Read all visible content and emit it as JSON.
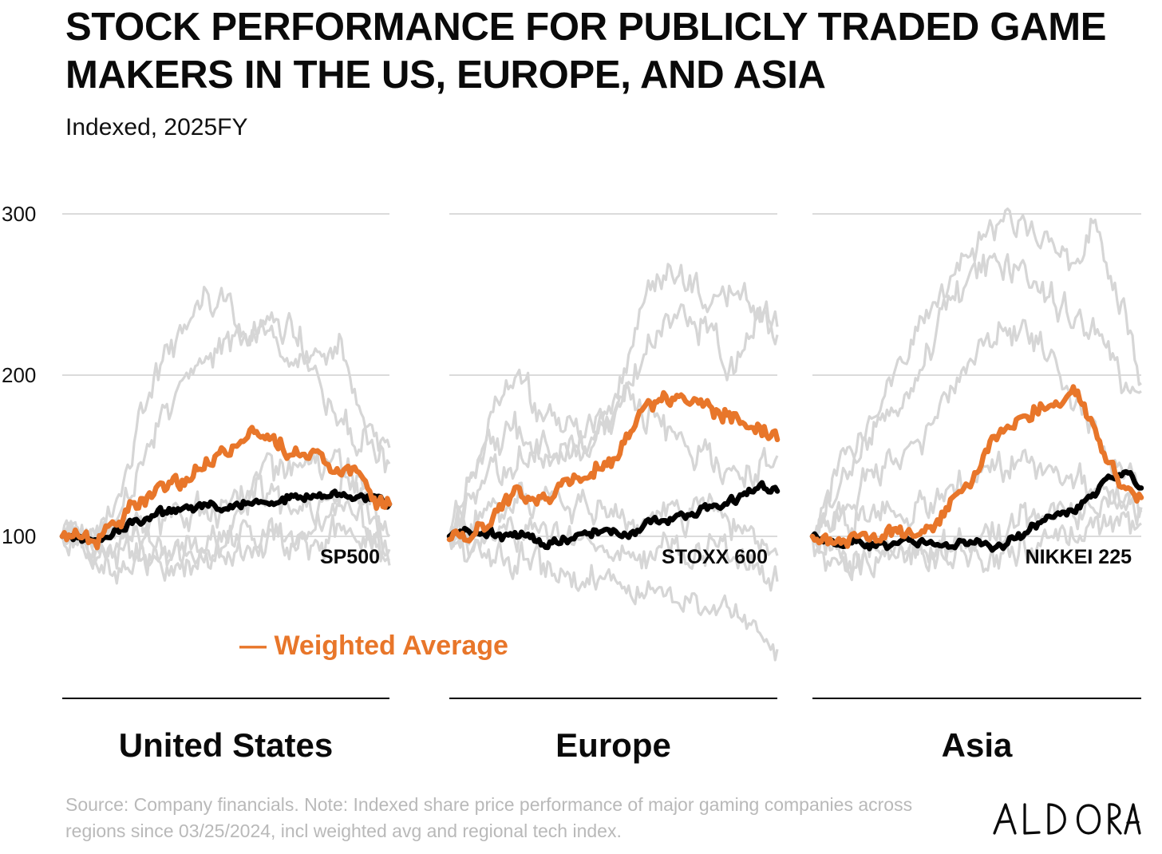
{
  "title": "STOCK PERFORMANCE FOR PUBLICLY TRADED GAME MAKERS IN THE US, EUROPE, AND ASIA",
  "subtitle": "Indexed, 2025FY",
  "source_note": "Source: Company financials. Note: Indexed share price performance of major gaming companies across regions since 03/25/2024, incl weighted avg and regional tech index.",
  "brand": "ALDORA",
  "colors": {
    "weighted_average": "#e8762a",
    "index": "#000000",
    "companies": "#d6d6d6",
    "grid": "#cfcfcf",
    "baseline": "#000000"
  },
  "chart_data": {
    "type": "line",
    "y_ticks": [
      "300",
      "200",
      "100"
    ],
    "ylim": [
      100,
      300
    ],
    "legend": {
      "label": "— Weighted  Average",
      "placement": "bottom-center"
    },
    "panels": [
      {
        "region": "United States",
        "index_name": "SP500",
        "x": [
          0,
          0.05,
          0.1,
          0.2,
          0.3,
          0.4,
          0.5,
          0.55,
          0.6,
          0.7,
          0.8,
          0.85,
          0.9,
          0.95,
          1.0
        ],
        "weighted_average": [
          100,
          102,
          96,
          115,
          130,
          140,
          152,
          161,
          165,
          153,
          148,
          144,
          141,
          122,
          120
        ],
        "index": [
          100,
          99,
          95,
          107,
          114,
          117,
          119,
          121,
          122,
          124,
          125,
          126,
          126,
          123,
          120
        ],
        "companies": [
          [
            100,
            104,
            98,
            145,
            205,
            240,
            250,
            220,
            225,
            235,
            190,
            170,
            160,
            165,
            155
          ],
          [
            100,
            101,
            93,
            125,
            170,
            200,
            215,
            225,
            230,
            205,
            210,
            220,
            185,
            150,
            145
          ],
          [
            100,
            99,
            90,
            100,
            95,
            88,
            95,
            115,
            128,
            115,
            120,
            130,
            125,
            110,
            100
          ],
          [
            100,
            102,
            88,
            95,
            85,
            82,
            85,
            88,
            92,
            95,
            98,
            110,
            105,
            100,
            92
          ],
          [
            100,
            100,
            97,
            105,
            112,
            115,
            118,
            124,
            135,
            140,
            142,
            145,
            138,
            120,
            82
          ],
          [
            100,
            98,
            76,
            80,
            87,
            93,
            97,
            100,
            98,
            102,
            108,
            112,
            118,
            100,
            85
          ]
        ]
      },
      {
        "region": "Europe",
        "index_name": "STOXX 600",
        "x": [
          0,
          0.05,
          0.1,
          0.2,
          0.3,
          0.4,
          0.5,
          0.55,
          0.6,
          0.7,
          0.8,
          0.85,
          0.9,
          0.95,
          1.0
        ],
        "weighted_average": [
          98,
          100,
          105,
          128,
          122,
          140,
          145,
          165,
          182,
          188,
          180,
          175,
          172,
          168,
          160
        ],
        "index": [
          100,
          102,
          103,
          100,
          96,
          100,
          106,
          98,
          110,
          112,
          118,
          120,
          126,
          132,
          128
        ],
        "companies": [
          [
            100,
            130,
            160,
            200,
            175,
            165,
            175,
            210,
            250,
            265,
            240,
            255,
            245,
            235,
            230
          ],
          [
            100,
            125,
            150,
            165,
            140,
            150,
            170,
            190,
            215,
            240,
            225,
            200,
            220,
            235,
            225
          ],
          [
            100,
            115,
            135,
            150,
            155,
            160,
            175,
            185,
            175,
            160,
            150,
            140,
            135,
            145,
            150
          ],
          [
            100,
            105,
            115,
            120,
            125,
            118,
            112,
            108,
            105,
            115,
            120,
            110,
            100,
            95,
            88
          ],
          [
            100,
            95,
            98,
            102,
            105,
            100,
            95,
            90,
            88,
            92,
            95,
            90,
            85,
            80,
            72
          ],
          [
            100,
            90,
            85,
            88,
            80,
            75,
            70,
            68,
            65,
            60,
            58,
            52,
            45,
            38,
            30
          ]
        ]
      },
      {
        "region": "Asia",
        "index_name": "NIKKEI 225",
        "x": [
          0,
          0.05,
          0.1,
          0.2,
          0.3,
          0.4,
          0.5,
          0.55,
          0.6,
          0.7,
          0.8,
          0.85,
          0.9,
          0.95,
          1.0
        ],
        "weighted_average": [
          100,
          95,
          98,
          100,
          102,
          112,
          140,
          160,
          170,
          180,
          190,
          170,
          145,
          132,
          124
        ],
        "index": [
          100,
          96,
          94,
          95,
          97,
          96,
          95,
          92,
          96,
          108,
          118,
          125,
          135,
          140,
          130
        ],
        "companies": [
          [
            100,
            125,
            155,
            180,
            215,
            255,
            285,
            295,
            300,
            280,
            265,
            300,
            260,
            235,
            195
          ],
          [
            100,
            120,
            140,
            165,
            195,
            240,
            265,
            275,
            270,
            250,
            240,
            230,
            210,
            195,
            190
          ],
          [
            100,
            110,
            120,
            140,
            155,
            180,
            215,
            225,
            230,
            220,
            185,
            165,
            150,
            140,
            130
          ],
          [
            100,
            105,
            110,
            115,
            120,
            125,
            135,
            140,
            145,
            140,
            135,
            130,
            125,
            120,
            115
          ],
          [
            100,
            92,
            88,
            85,
            88,
            92,
            95,
            100,
            105,
            110,
            115,
            118,
            120,
            122,
            118
          ],
          [
            100,
            88,
            82,
            85,
            90,
            92,
            88,
            85,
            90,
            95,
            100,
            105,
            110,
            112,
            108
          ]
        ]
      }
    ]
  }
}
